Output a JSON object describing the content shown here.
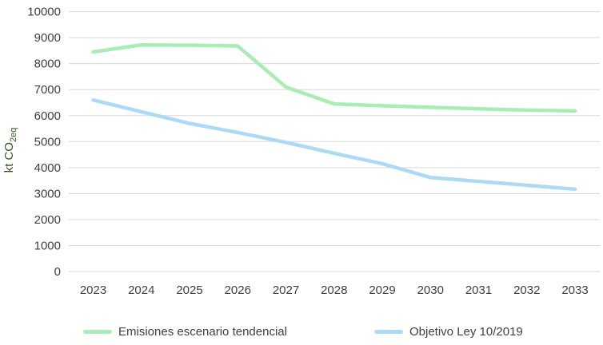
{
  "chart_data": {
    "type": "line",
    "title": "",
    "ylabel_main": "kt CO",
    "ylabel_sub": "2eq",
    "xlabel": "",
    "x": [
      2023,
      2024,
      2025,
      2026,
      2027,
      2028,
      2029,
      2030,
      2031,
      2032,
      2033
    ],
    "series": [
      {
        "name": "Emisiones escenario tendencial",
        "color": "#a9ecb4",
        "values": [
          8450,
          8720,
          8710,
          8680,
          7100,
          6450,
          6380,
          6320,
          6260,
          6210,
          6180
        ]
      },
      {
        "name": "Objetivo Ley 10/2019",
        "color": "#acdaf4",
        "values": [
          6600,
          6150,
          5700,
          5350,
          4970,
          4550,
          4150,
          3620,
          3470,
          3320,
          3170
        ]
      }
    ],
    "ylim": [
      0,
      10000
    ],
    "ytick_step": 1000,
    "grid": true,
    "legend_position": "bottom",
    "colors": {
      "grid": "#d9d9d9",
      "tick_text": "#404040",
      "axis_label": "#375623",
      "background": "#ffffff"
    }
  }
}
